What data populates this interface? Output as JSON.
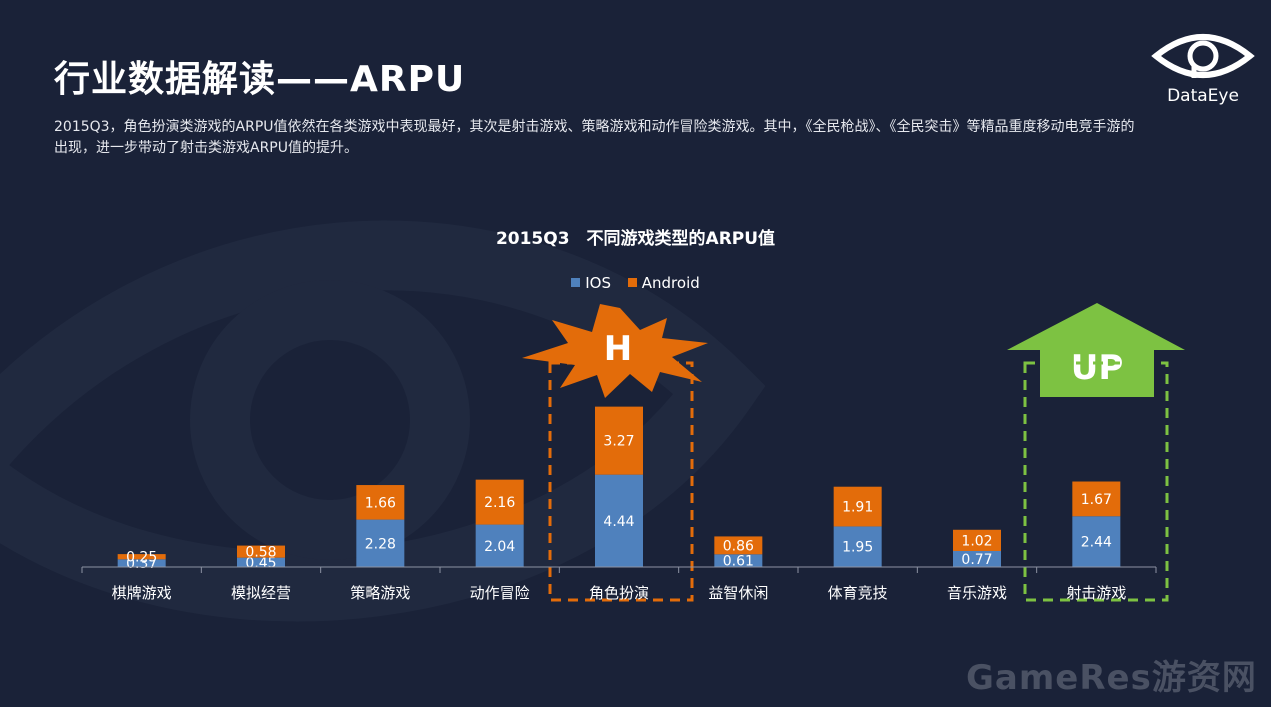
{
  "slide": {
    "title": "行业数据解读——ARPU",
    "description": "2015Q3，角色扮演类游戏的ARPU值依然在各类游戏中表现最好，其次是射击游戏、策略游戏和动作冒险类游戏。其中，《全民枪战》、《全民突击》等精品重度移动电竞手游的出现，进一步带动了射击类游戏ARPU值的提升。",
    "logo_text": "DataEye",
    "watermark": "GameRes游资网"
  },
  "callouts": {
    "burst_label": "H",
    "arrow_label": "UP"
  },
  "colors": {
    "background": "#1a2238",
    "ios": "#4f81bd",
    "android": "#e36c0a",
    "highlight_orange": "#e36c0a",
    "highlight_green": "#7dc242"
  },
  "chart_data": {
    "type": "bar",
    "stacked": true,
    "title": "2015Q3　不同游戏类型的ARPU值",
    "categories": [
      "棋牌游戏",
      "模拟经营",
      "策略游戏",
      "动作冒险",
      "角色扮演",
      "益智休闲",
      "体育竞技",
      "音乐游戏",
      "射击游戏"
    ],
    "series": [
      {
        "name": "IOS",
        "values": [
          0.37,
          0.45,
          2.28,
          2.04,
          4.44,
          0.61,
          1.95,
          0.77,
          2.44
        ]
      },
      {
        "name": "Android",
        "values": [
          0.25,
          0.58,
          1.66,
          2.16,
          3.27,
          0.86,
          1.91,
          1.02,
          1.67
        ]
      }
    ],
    "legend_position": "top",
    "grid": false,
    "highlighted_categories": [
      "角色扮演",
      "射击游戏"
    ]
  }
}
